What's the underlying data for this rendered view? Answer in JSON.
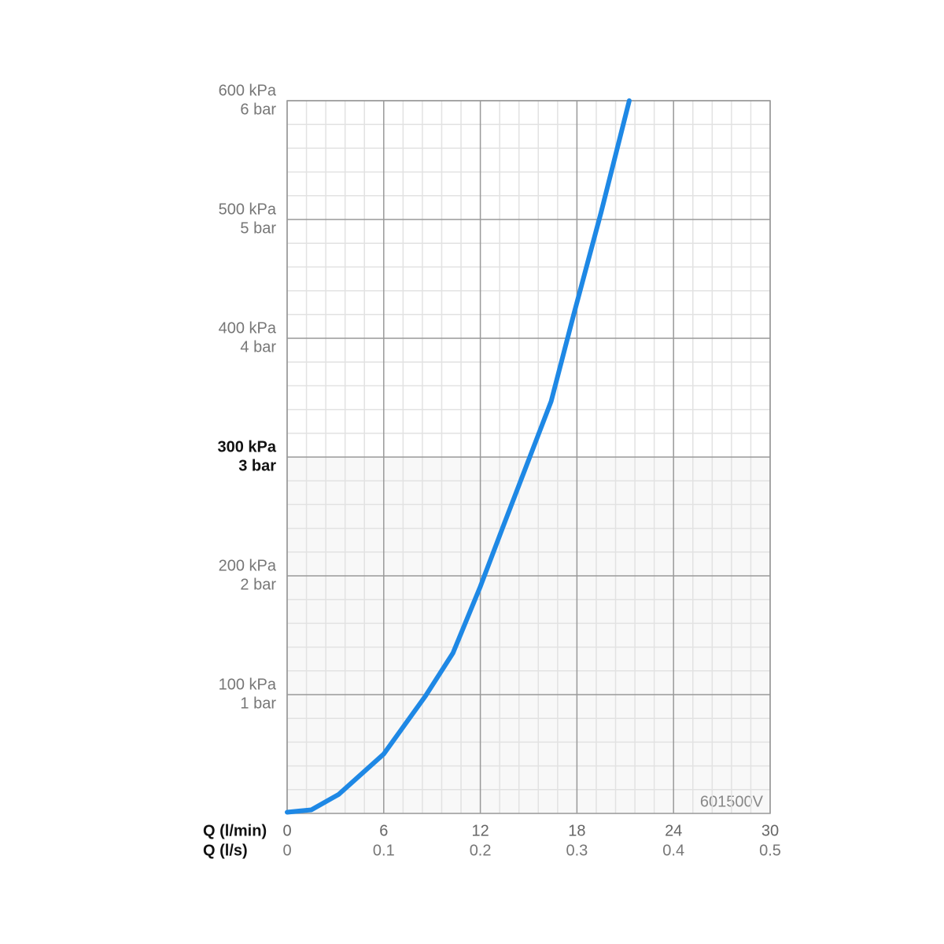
{
  "chart_data": {
    "type": "line",
    "x_axis_title": "Q (l/min)",
    "x2_axis_title": "Q (l/s)",
    "annotation": "601500V",
    "x": [
      0,
      1.5,
      3.2,
      6,
      8.6,
      10.3,
      12,
      13.4,
      14.9,
      16.4,
      17.8,
      19.5,
      21.25
    ],
    "values": [
      1,
      3,
      16,
      50,
      99,
      135,
      191,
      241,
      294,
      347,
      420,
      506,
      600
    ],
    "color": "#1e88e5",
    "xlim": [
      0,
      30
    ],
    "xticks": [
      0,
      6,
      12,
      18,
      24,
      30
    ],
    "x2lim": [
      0,
      0.5
    ],
    "x2ticks": [
      0,
      0.1,
      0.2,
      0.3,
      0.4,
      0.5
    ],
    "ylim": [
      0,
      600
    ],
    "yticks": [
      {
        "value": 100,
        "label": "100 kPa"
      },
      {
        "value": 200,
        "label": "200 kPa"
      },
      {
        "value": 300,
        "label": "300 kPa"
      },
      {
        "value": 400,
        "label": "400 kPa"
      },
      {
        "value": 500,
        "label": "500 kPa"
      },
      {
        "value": 600,
        "label": "600 kPa"
      }
    ],
    "y2lim": [
      0,
      6
    ],
    "y2ticks": [
      {
        "value": 1,
        "label": "1 bar"
      },
      {
        "value": 2,
        "label": "2 bar"
      },
      {
        "value": 3,
        "label": "3 bar"
      },
      {
        "value": 4,
        "label": "4 bar"
      },
      {
        "value": 5,
        "label": "5 bar"
      },
      {
        "value": 6,
        "label": "6 bar"
      }
    ],
    "bold_ytick": 300,
    "grid": true,
    "minor_divisions": 5
  }
}
